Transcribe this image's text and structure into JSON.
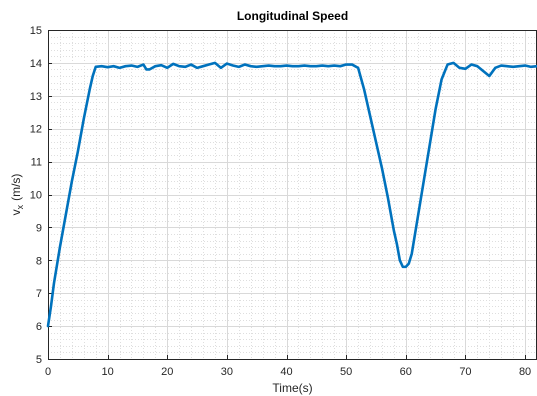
{
  "chart_data": {
    "type": "line",
    "title": "Longitudinal Speed",
    "xlabel": "Time(s)",
    "ylabel_main": "v",
    "ylabel_sub": "x",
    "ylabel_unit": "(m/s)",
    "xlim": [
      0,
      82
    ],
    "ylim": [
      5,
      15
    ],
    "xticks": [
      0,
      10,
      20,
      30,
      40,
      50,
      60,
      70,
      80
    ],
    "yticks": [
      5,
      6,
      7,
      8,
      9,
      10,
      11,
      12,
      13,
      14,
      15
    ],
    "grid": true,
    "minor_grid": true,
    "series_color": "#0072BD",
    "series": [
      {
        "x": [
          0,
          0.5,
          1,
          2,
          3,
          4,
          5,
          6,
          7,
          7.5,
          8,
          9,
          10,
          11,
          12,
          13,
          14,
          15,
          16,
          16.5,
          17,
          18,
          19,
          20,
          21,
          22,
          23,
          24,
          25,
          26,
          27,
          28,
          29,
          30,
          31,
          32,
          33,
          34,
          35,
          36,
          37,
          38,
          39,
          40,
          41,
          42,
          43,
          44,
          45,
          46,
          47,
          48,
          49,
          50,
          51,
          52,
          53,
          54,
          55,
          56,
          57,
          58,
          58.5,
          59,
          59.5,
          60,
          60.5,
          61,
          62,
          63,
          64,
          65,
          66,
          67,
          68,
          69,
          70,
          71,
          72,
          73,
          74,
          75,
          76,
          77,
          78,
          79,
          80,
          81,
          82
        ],
        "y": [
          6.0,
          6.6,
          7.3,
          8.4,
          9.4,
          10.4,
          11.3,
          12.3,
          13.2,
          13.6,
          13.88,
          13.9,
          13.87,
          13.9,
          13.85,
          13.9,
          13.92,
          13.88,
          13.95,
          13.8,
          13.8,
          13.9,
          13.93,
          13.85,
          13.97,
          13.9,
          13.88,
          13.95,
          13.85,
          13.9,
          13.95,
          14.0,
          13.85,
          13.98,
          13.92,
          13.88,
          13.95,
          13.9,
          13.88,
          13.9,
          13.92,
          13.9,
          13.9,
          13.92,
          13.9,
          13.9,
          13.92,
          13.9,
          13.9,
          13.92,
          13.9,
          13.92,
          13.9,
          13.95,
          13.95,
          13.85,
          13.2,
          12.4,
          11.6,
          10.8,
          9.9,
          8.9,
          8.5,
          8.0,
          7.8,
          7.8,
          7.9,
          8.2,
          9.3,
          10.4,
          11.5,
          12.6,
          13.5,
          13.95,
          14.0,
          13.85,
          13.82,
          13.95,
          13.9,
          13.75,
          13.6,
          13.85,
          13.92,
          13.9,
          13.88,
          13.9,
          13.92,
          13.88,
          13.9
        ]
      }
    ]
  }
}
